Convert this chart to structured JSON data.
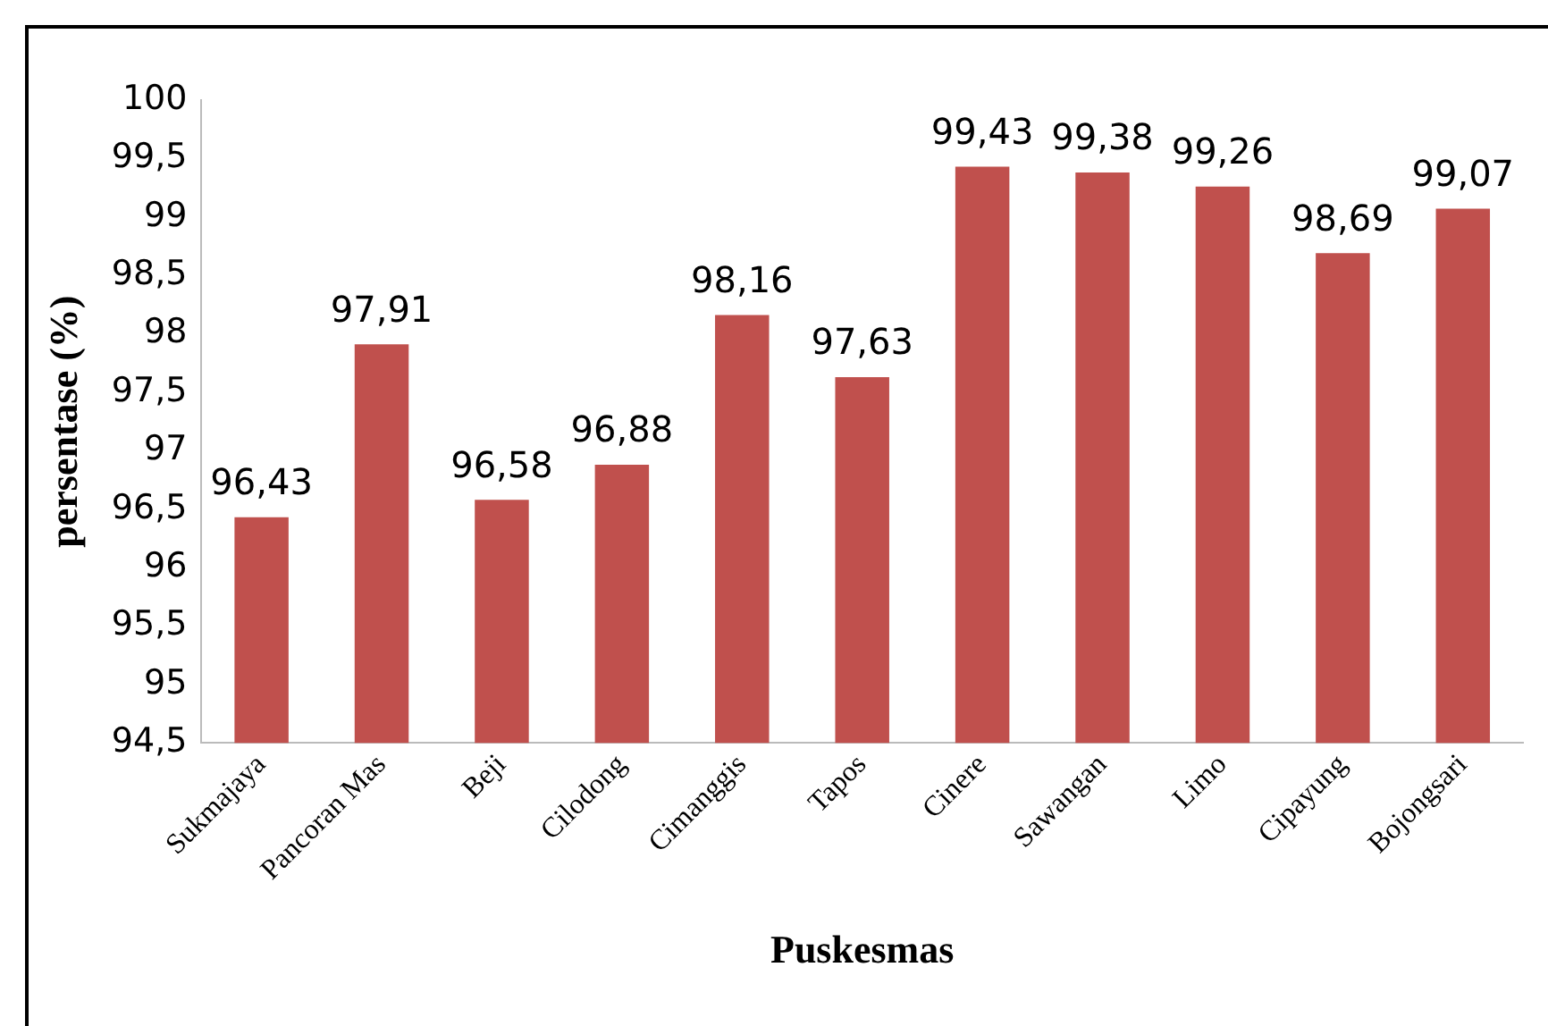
{
  "chart_data": {
    "type": "bar",
    "xlabel": "Puskesmas",
    "ylabel": "persentase (%)",
    "categories": [
      "Sukmajaya",
      "Pancoran Mas",
      "Beji",
      "Cilodong",
      "Cimanggis",
      "Tapos",
      "Cinere",
      "Sawangan",
      "Limo",
      "Cipayung",
      "Bojongsari"
    ],
    "values": [
      96.43,
      97.91,
      96.58,
      96.88,
      98.16,
      97.63,
      99.43,
      99.38,
      99.26,
      98.69,
      99.07
    ],
    "value_labels": [
      "96,43",
      "97,91",
      "96,58",
      "96,88",
      "98,16",
      "97,63",
      "99,43",
      "99,38",
      "99,26",
      "98,69",
      "99,07"
    ],
    "color": "#c0504d",
    "ylim": [
      94.5,
      100
    ],
    "yticks": [
      {
        "value": 94.5,
        "label": "94,5"
      },
      95,
      {
        "value": 95.5,
        "label": "95,5"
      },
      96,
      {
        "value": 96.5,
        "label": "96,5"
      },
      97,
      {
        "value": 97.5,
        "label": "97,5"
      },
      98,
      {
        "value": 98.5,
        "label": "98,5"
      },
      99,
      {
        "value": 99.5,
        "label": "99,5"
      },
      100
    ],
    "grid": false,
    "legend": false
  }
}
